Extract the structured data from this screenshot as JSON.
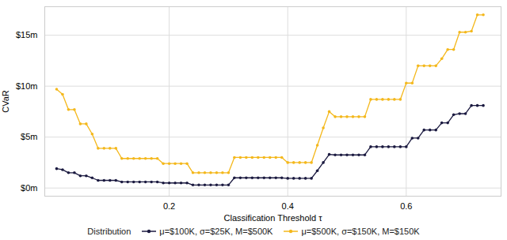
{
  "chart_data": {
    "type": "line",
    "x_label": "Classification Threshold τ",
    "y_label": "CVaR",
    "legend_title": "Distribution",
    "legend": "bottom",
    "grid": true,
    "marker": "circle",
    "x": [
      0.01,
      0.02,
      0.03,
      0.04,
      0.05,
      0.06,
      0.07,
      0.08,
      0.09,
      0.1,
      0.11,
      0.12,
      0.13,
      0.14,
      0.15,
      0.16,
      0.17,
      0.18,
      0.19,
      0.2,
      0.21,
      0.22,
      0.23,
      0.24,
      0.25,
      0.26,
      0.27,
      0.28,
      0.29,
      0.3,
      0.31,
      0.32,
      0.33,
      0.34,
      0.35,
      0.36,
      0.37,
      0.38,
      0.39,
      0.4,
      0.41,
      0.42,
      0.43,
      0.44,
      0.45,
      0.46,
      0.47,
      0.48,
      0.49,
      0.5,
      0.51,
      0.52,
      0.53,
      0.54,
      0.55,
      0.56,
      0.57,
      0.58,
      0.59,
      0.6,
      0.61,
      0.62,
      0.63,
      0.64,
      0.65,
      0.66,
      0.67,
      0.68,
      0.69,
      0.7,
      0.71,
      0.72,
      0.73
    ],
    "series": [
      {
        "name": "μ=$100K, σ=$25K, M=$500K",
        "color": "#1b1a40",
        "values": [
          1.9,
          1.8,
          1.5,
          1.5,
          1.2,
          1.2,
          1.0,
          0.75,
          0.75,
          0.75,
          0.75,
          0.6,
          0.6,
          0.6,
          0.6,
          0.6,
          0.6,
          0.6,
          0.5,
          0.5,
          0.5,
          0.5,
          0.5,
          0.3,
          0.3,
          0.3,
          0.3,
          0.3,
          0.3,
          0.3,
          1.0,
          1.0,
          1.0,
          1.0,
          1.0,
          1.0,
          1.0,
          1.0,
          1.0,
          0.95,
          0.95,
          0.95,
          0.95,
          0.95,
          1.7,
          2.5,
          3.3,
          3.25,
          3.25,
          3.25,
          3.25,
          3.25,
          3.25,
          4.05,
          4.05,
          4.05,
          4.05,
          4.05,
          4.05,
          4.05,
          4.9,
          4.9,
          5.7,
          5.7,
          5.7,
          6.4,
          6.4,
          7.2,
          7.3,
          7.3,
          8.1,
          8.1,
          8.1
        ]
      },
      {
        "name": "μ=$500K, σ=$150K, M=$150K",
        "color": "#f4b81c",
        "values": [
          9.7,
          9.2,
          7.7,
          7.7,
          6.3,
          6.3,
          5.3,
          3.9,
          3.9,
          3.9,
          3.9,
          2.9,
          2.9,
          2.9,
          2.9,
          2.9,
          2.9,
          2.9,
          2.4,
          2.4,
          2.4,
          2.4,
          2.4,
          1.5,
          1.5,
          1.5,
          1.5,
          1.5,
          1.5,
          1.5,
          3.0,
          3.0,
          3.0,
          3.0,
          3.0,
          3.0,
          3.0,
          3.0,
          3.0,
          2.5,
          2.5,
          2.5,
          2.5,
          2.5,
          4.2,
          5.9,
          7.5,
          7.0,
          7.0,
          7.0,
          7.0,
          7.0,
          7.0,
          8.7,
          8.7,
          8.7,
          8.7,
          8.7,
          8.7,
          10.3,
          10.3,
          12.0,
          12.0,
          12.0,
          12.0,
          12.7,
          13.6,
          13.6,
          15.3,
          15.3,
          15.4,
          17.0,
          17.0
        ]
      }
    ],
    "xlim": [
      -0.01,
      0.76
    ],
    "xticks": [
      0.2,
      0.4,
      0.6
    ],
    "ylim": [
      -0.8,
      17.8
    ],
    "yticks": [
      {
        "value": 0,
        "label": "$0m"
      },
      {
        "value": 5,
        "label": "$5m"
      },
      {
        "value": 10,
        "label": "$10m"
      },
      {
        "value": 15,
        "label": "$15m"
      }
    ]
  }
}
